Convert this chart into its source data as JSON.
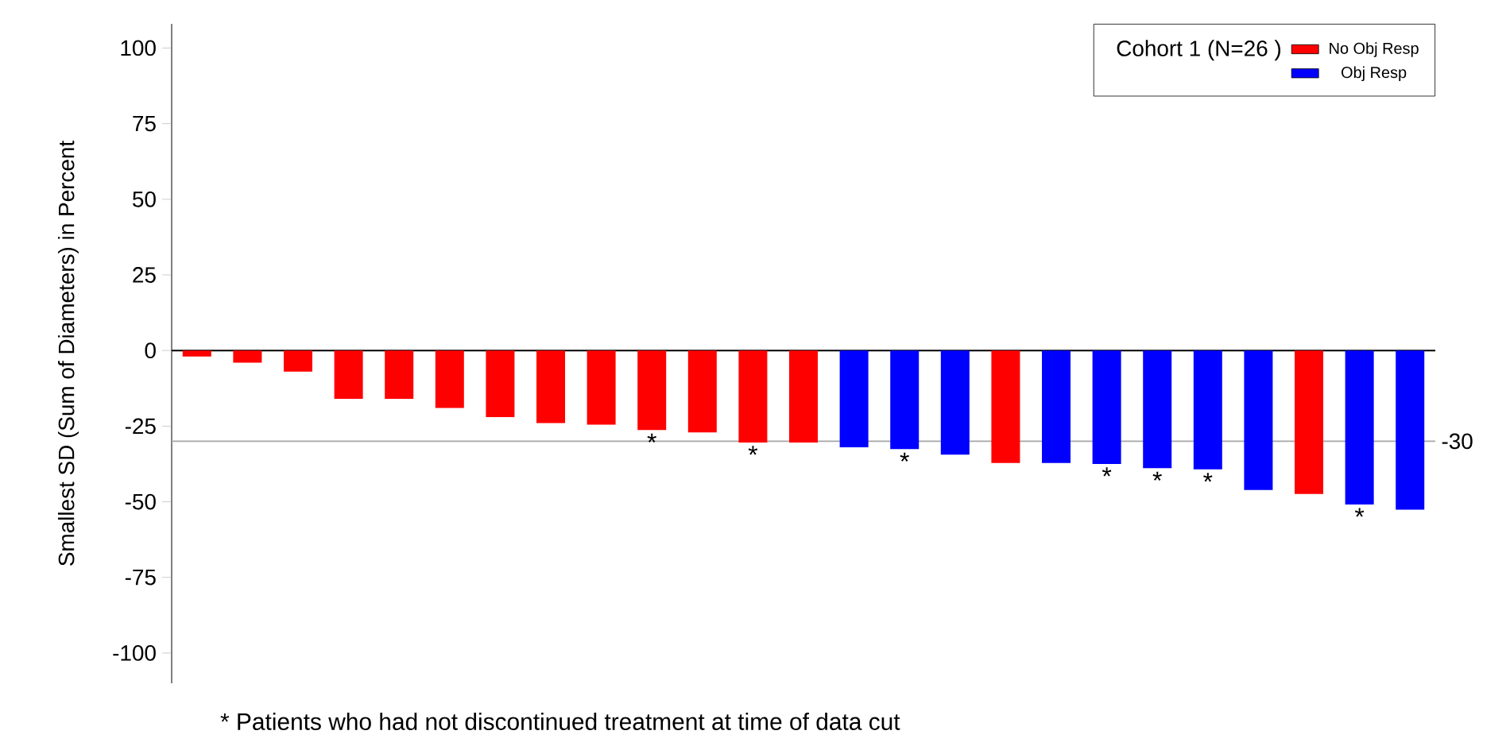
{
  "chart_data": {
    "type": "bar",
    "ylabel": "Smallest SD (Sum of Diameters) in Percent",
    "legend_title": "Cohort 1 (N=26 )",
    "categories": [
      null,
      null,
      null,
      null,
      null,
      null,
      null,
      null,
      null,
      null,
      null,
      null,
      null,
      null,
      null,
      null,
      null,
      null,
      null,
      null,
      null,
      null,
      null,
      null,
      null
    ],
    "series": [
      {
        "name": "No Obj Resp",
        "color": "#ff0000",
        "values": [
          -2,
          -4,
          -7,
          -16,
          -16,
          -19,
          -22,
          -24,
          -24.5,
          -26.3,
          -27.1,
          -30.4,
          -30.4,
          null,
          null,
          null,
          -37.2,
          null,
          null,
          null,
          null,
          null,
          -47.4,
          null,
          null
        ],
        "value_labels": [
          null,
          null,
          null,
          null,
          null,
          null,
          null,
          null,
          null,
          "*",
          null,
          "*",
          null,
          null,
          null,
          null,
          null,
          null,
          null,
          null,
          null,
          null,
          null,
          null,
          null
        ]
      },
      {
        "name": "Obj Resp",
        "color": "#0000ff",
        "values": [
          null,
          null,
          null,
          null,
          null,
          null,
          null,
          null,
          null,
          null,
          null,
          null,
          null,
          -32.0,
          -32.6,
          -34.4,
          null,
          -37.2,
          -37.5,
          -38.9,
          -39.3,
          -46.1,
          null,
          -50.9,
          -52.6
        ],
        "value_labels": [
          null,
          null,
          null,
          null,
          null,
          null,
          null,
          null,
          null,
          null,
          null,
          null,
          null,
          null,
          "*",
          null,
          null,
          null,
          "*",
          "*",
          "*",
          null,
          null,
          "*",
          null
        ]
      }
    ],
    "ylim": [
      -110,
      108
    ],
    "yticks": [
      -100,
      -75,
      -50,
      -25,
      0,
      25,
      50,
      75,
      100
    ],
    "tick_labels": "y",
    "legend": "top right",
    "stacked": true,
    "ref_lines": [
      {
        "axis": "y",
        "value": -30,
        "label": "-30",
        "color": "#a6a6a6"
      }
    ],
    "annotations": [
      "* Patients who had not discontinued treatment at time of data cut"
    ]
  }
}
